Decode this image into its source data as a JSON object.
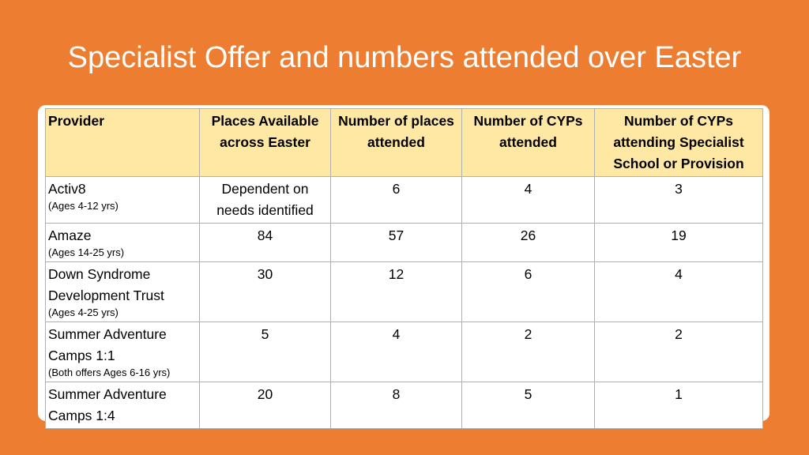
{
  "title": "Specialist Offer and numbers attended over Easter",
  "colors": {
    "background": "#ED7D31",
    "header_fill": "#FFE8A3",
    "panel": "#FFFFFF",
    "title_text": "#FFFFFF"
  },
  "table": {
    "headers": [
      "Provider",
      "Places Available across Easter",
      "Number of places attended",
      "Number of CYPs attended",
      "Number of CYPs attending Specialist School or Provision"
    ],
    "rows": [
      {
        "provider": "Activ8",
        "age_note": "(Ages 4-12 yrs)",
        "places_available": "Dependent on needs identified",
        "places_attended": "6",
        "cyps_attended": "4",
        "cyps_specialist": "3"
      },
      {
        "provider": "Amaze",
        "age_note": "(Ages 14-25 yrs)",
        "places_available": "84",
        "places_attended": "57",
        "cyps_attended": "26",
        "cyps_specialist": "19"
      },
      {
        "provider": "Down Syndrome Development Trust",
        "age_note": "(Ages 4-25 yrs)",
        "places_available": "30",
        "places_attended": "12",
        "cyps_attended": "6",
        "cyps_specialist": "4"
      },
      {
        "provider": "Summer Adventure Camps 1:1",
        "age_note": "(Both offers Ages 6-16 yrs)",
        "places_available": "5",
        "places_attended": "4",
        "cyps_attended": "2",
        "cyps_specialist": "2"
      },
      {
        "provider": "Summer Adventure Camps 1:4",
        "age_note": "",
        "places_available": "20",
        "places_attended": "8",
        "cyps_attended": "5",
        "cyps_specialist": "1"
      }
    ]
  }
}
